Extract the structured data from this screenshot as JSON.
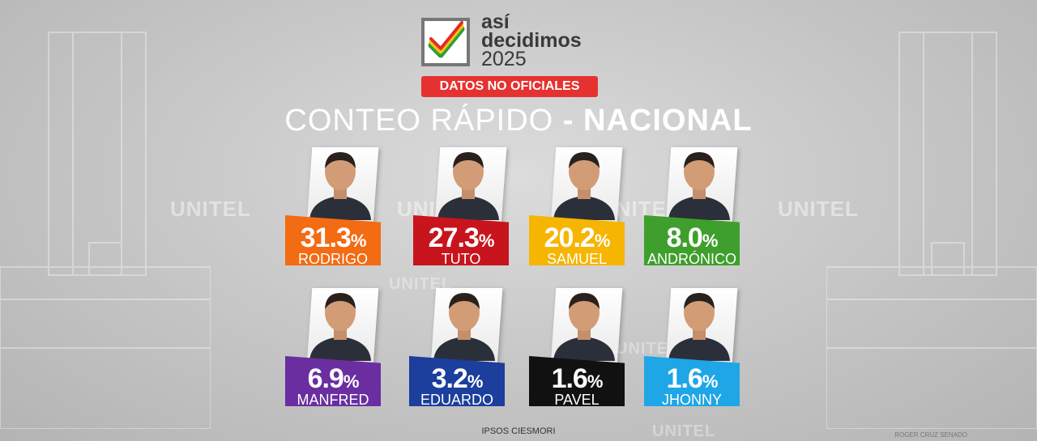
{
  "header": {
    "logo_line1": "así",
    "logo_line2": "decidimos",
    "logo_line3": "2025",
    "badge": "DATOS NO OFICIALES",
    "title_light": "CONTEO RÁPIDO",
    "title_sep": " - ",
    "title_bold": "NACIONAL"
  },
  "watermark_text": "UNITEL",
  "source": "IPSOS CIESMORI",
  "credit": "ROGER CRUZ SENADO",
  "colors": {
    "background": "#c9c9c9",
    "badge_red": "#e63131",
    "logo_check_red": "#e02b2b",
    "logo_check_yellow": "#f2c311",
    "logo_check_green": "#2e9e3a"
  },
  "chart_data": {
    "type": "bar",
    "title": "CONTEO RÁPIDO - NACIONAL",
    "unit": "%",
    "categories": [
      "RODRIGO",
      "TUTO",
      "SAMUEL",
      "ANDRÓNICO",
      "MANFRED",
      "EDUARDO",
      "PAVEL",
      "JHONNY"
    ],
    "values": [
      31.3,
      27.3,
      20.2,
      8.0,
      6.9,
      3.2,
      1.6,
      1.6
    ],
    "labels": [
      "31.3",
      "27.3",
      "20.2",
      "8.0",
      "6.9",
      "3.2",
      "1.6",
      "1.6"
    ],
    "colors": [
      "#f36b12",
      "#c8141c",
      "#f6b500",
      "#3f9f2c",
      "#6a2ea0",
      "#1c3e9c",
      "#111111",
      "#1ea6e6"
    ]
  }
}
